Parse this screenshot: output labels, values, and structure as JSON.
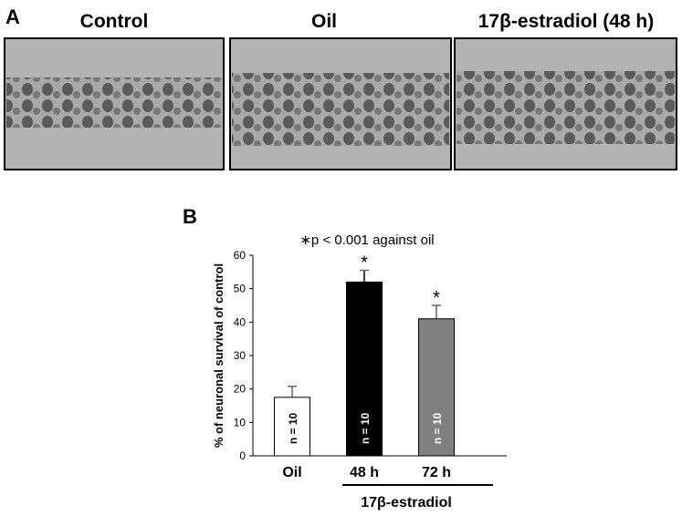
{
  "panel_a": {
    "label": "A",
    "titles": [
      "Control",
      "Oil",
      "17β-estradiol (48 h)"
    ]
  },
  "panel_b_label": "B",
  "chart_data": {
    "type": "bar",
    "annotation": "∗p < 0.001 against oil",
    "ylabel": "% of neuronal survival of control",
    "categories": [
      "Oil",
      "48 h",
      "72 h"
    ],
    "values": [
      17.5,
      52,
      41
    ],
    "errors": [
      3.3,
      3.5,
      4
    ],
    "colors": [
      "#ffffff",
      "#000000",
      "#808080"
    ],
    "bar_labels": [
      "n = 10",
      "n = 10",
      "n = 10"
    ],
    "significance": [
      null,
      "*",
      "*"
    ],
    "group_label": "17β-estradiol",
    "ylim": [
      0,
      60
    ],
    "yticks": [
      0,
      10,
      20,
      30,
      40,
      50,
      60
    ]
  }
}
